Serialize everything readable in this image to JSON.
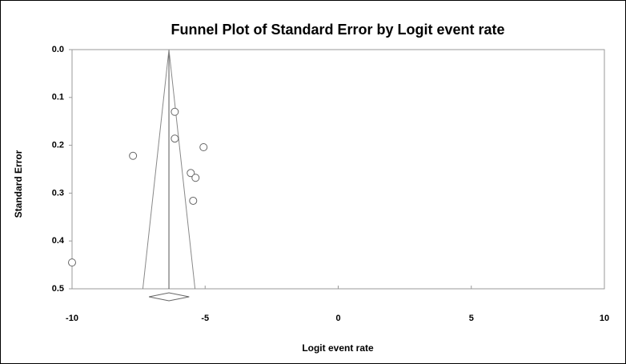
{
  "chart_data": {
    "type": "scatter",
    "title": "Funnel Plot of Standard Error by Logit event rate",
    "x_label": "Logit event rate",
    "y_label": "Standard Error",
    "x": [
      -6.14,
      -6.14,
      -5.06,
      -7.71,
      -5.54,
      -5.36,
      -5.45,
      -10.0
    ],
    "values": [
      0.13,
      0.186,
      0.204,
      0.222,
      0.258,
      0.268,
      0.316,
      0.445
    ],
    "color": "#666666",
    "xlim": [
      -10,
      10
    ],
    "xticks": [
      -10,
      -5,
      0,
      5,
      10
    ],
    "ylim": [
      0,
      0.5
    ],
    "yticks": [
      {
        "value": 0,
        "label": "0.0"
      },
      0.1,
      0.2,
      0.3,
      0.4,
      0.5
    ],
    "y_inverted": true,
    "funnel": {
      "apex": -6.36,
      "bottom": [
        -7.34,
        -5.38
      ]
    },
    "summary": {
      "estimate": -6.36,
      "ci": [
        -7.11,
        -5.6
      ]
    }
  }
}
